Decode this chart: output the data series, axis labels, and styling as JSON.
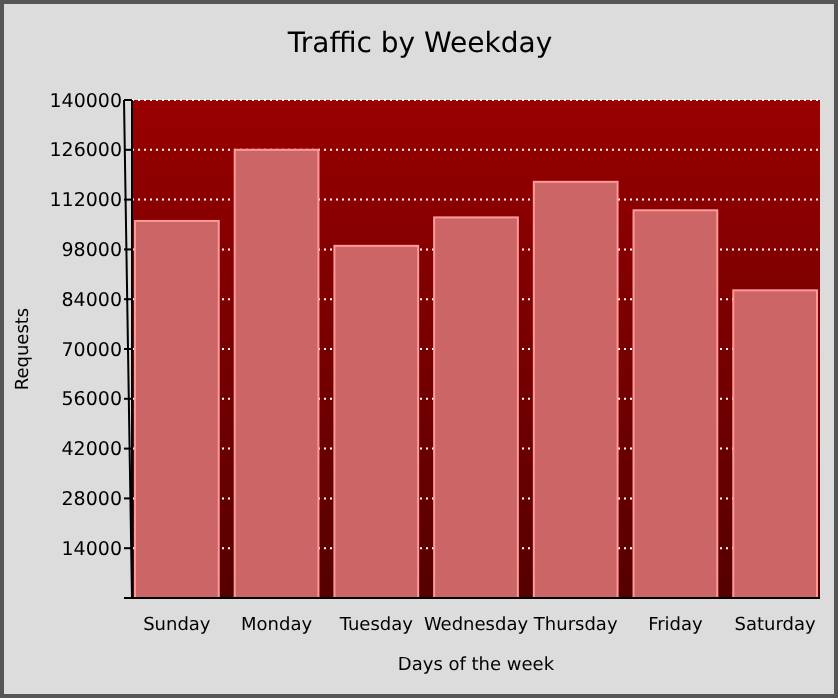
{
  "chart_data": {
    "type": "bar",
    "title": "Traffic by Weekday",
    "xlabel": "Days of the week",
    "ylabel": "Requests",
    "categories": [
      "Sunday",
      "Monday",
      "Tuesday",
      "Wednesday",
      "Thursday",
      "Friday",
      "Saturday"
    ],
    "values": [
      106000,
      126000,
      99000,
      107000,
      117000,
      109000,
      86500
    ],
    "color": "#cc6666",
    "ylim": [
      0,
      140000
    ],
    "yticks": [
      {
        "value": 0,
        "label": null
      },
      14000,
      28000,
      42000,
      56000,
      70000,
      84000,
      98000,
      112000,
      126000,
      140000
    ],
    "grid": "y"
  }
}
